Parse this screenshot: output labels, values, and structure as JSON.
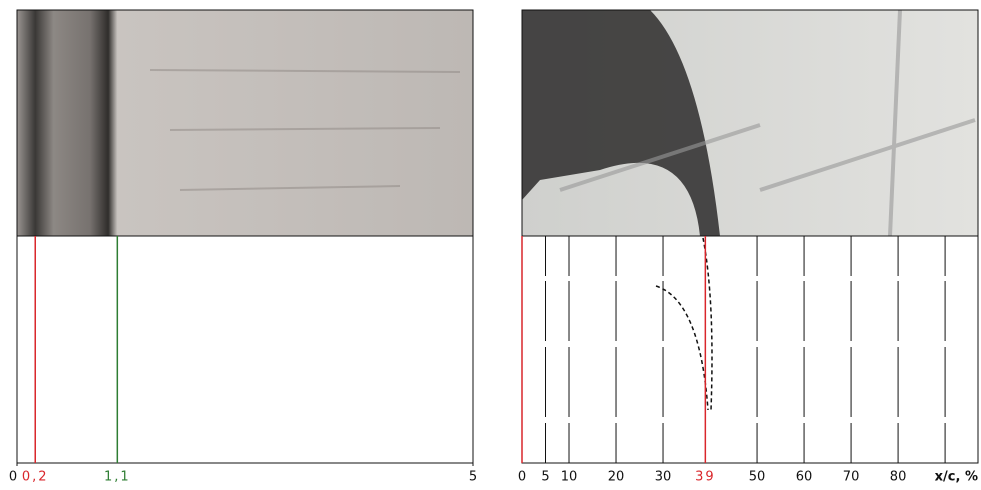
{
  "chart_data": [
    {
      "type": "marker-strip",
      "xlim": [
        0,
        5
      ],
      "xticks": [
        0,
        5
      ],
      "markers": [
        {
          "value": 0.2,
          "label": "0,2",
          "color": "#d9262b"
        },
        {
          "value": 1.1,
          "label": "1,1",
          "color": "#2e7d32"
        }
      ]
    },
    {
      "type": "marker-strip",
      "xlabel": "x/c, %",
      "xlim": [
        0,
        97
      ],
      "xticks": [
        0,
        5,
        10,
        20,
        30,
        50,
        60,
        70,
        80,
        {
          "value": 90,
          "label": null
        }
      ],
      "markers": [
        {
          "value": 0,
          "color": "#d9262b"
        },
        {
          "value": 39,
          "label": "39",
          "color": "#d9262b"
        }
      ]
    }
  ]
}
